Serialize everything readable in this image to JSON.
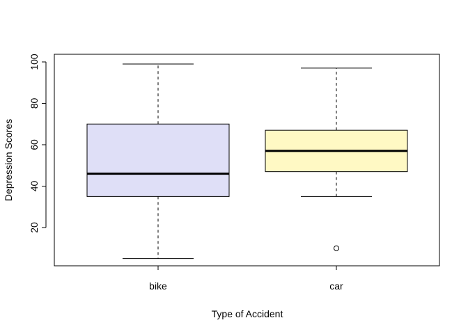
{
  "chart_data": {
    "type": "boxplot",
    "title": "",
    "xlabel": "Type of Accident",
    "ylabel": "Depression Scores",
    "ylim": [
      0,
      100
    ],
    "yticks": [
      20,
      40,
      60,
      80,
      100
    ],
    "grid": false,
    "legend": "none",
    "categories": [
      "bike",
      "car"
    ],
    "series": [
      {
        "category": "bike",
        "whisker_low": 5,
        "q1": 35,
        "median": 46,
        "q3": 70,
        "whisker_high": 99,
        "outliers": [],
        "fill": "#dfdff7"
      },
      {
        "category": "car",
        "whisker_low": 35,
        "q1": 47,
        "median": 57,
        "q3": 67,
        "whisker_high": 97,
        "outliers": [
          10
        ],
        "fill": "#fff9c4"
      }
    ]
  }
}
